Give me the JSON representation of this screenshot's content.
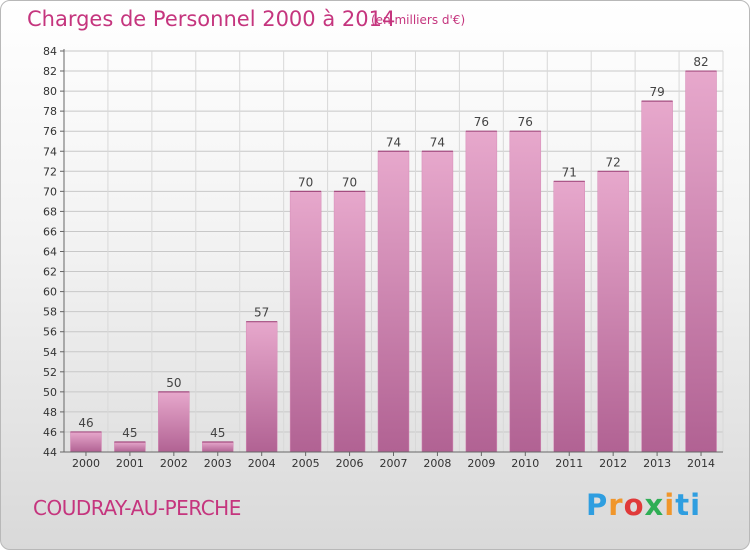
{
  "header": {
    "title": "Charges de Personnel 2000 à 2014",
    "subtitle": "(en milliers d'€)"
  },
  "footer": {
    "commune": "COUDRAY-AU-PERCHE",
    "logo_text": "Proxiti"
  },
  "colors": {
    "accent": "#c5357e",
    "bar_top": "#e7a8cc",
    "bar_bottom": "#b16293"
  },
  "chart_data": {
    "type": "bar",
    "title": "Charges de Personnel 2000 à 2014",
    "subtitle": "(en milliers d'€)",
    "xlabel": "",
    "ylabel": "",
    "categories": [
      "2000",
      "2001",
      "2002",
      "2003",
      "2004",
      "2005",
      "2006",
      "2007",
      "2008",
      "2009",
      "2010",
      "2011",
      "2012",
      "2013",
      "2014"
    ],
    "values": [
      46,
      45,
      50,
      45,
      57,
      70,
      70,
      74,
      74,
      76,
      76,
      71,
      72,
      79,
      82
    ],
    "ylim": [
      44,
      84
    ],
    "yticks": [
      44,
      46,
      48,
      50,
      52,
      54,
      56,
      58,
      60,
      62,
      64,
      66,
      68,
      70,
      72,
      74,
      76,
      78,
      80,
      82,
      84
    ],
    "grid": true,
    "legend": "none"
  }
}
